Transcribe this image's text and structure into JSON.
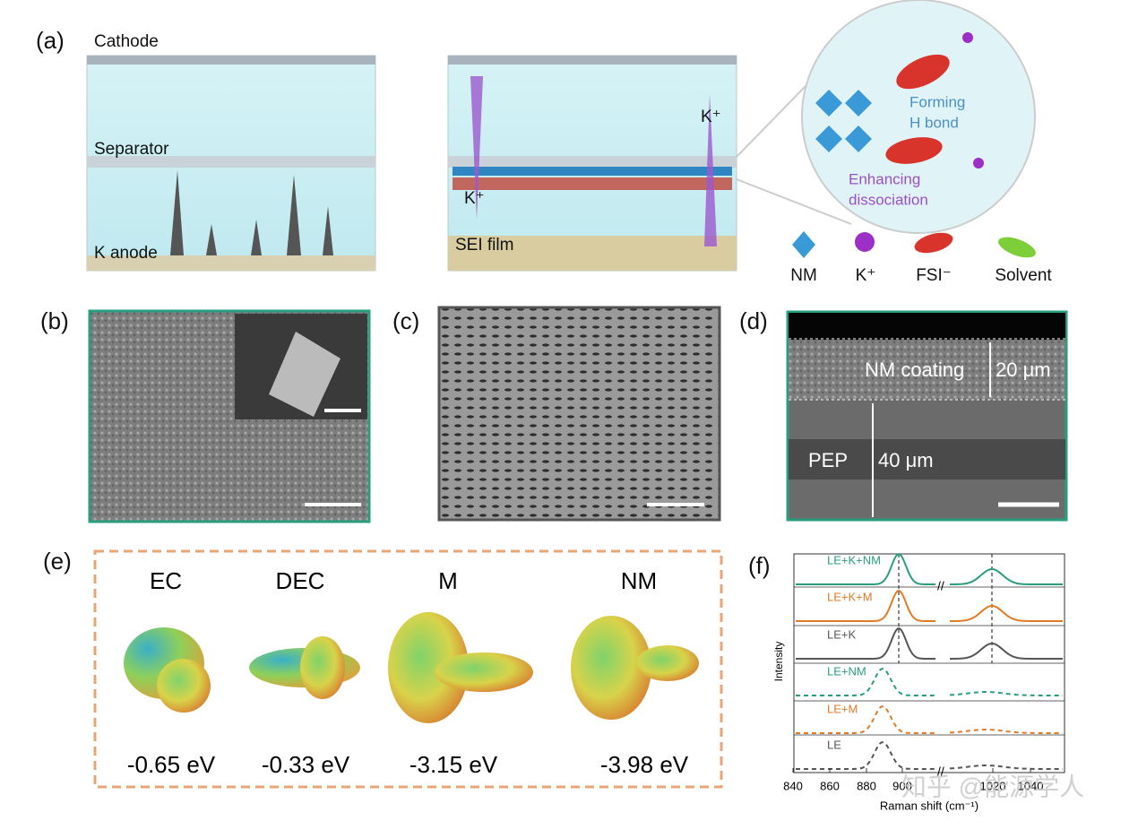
{
  "panel_a": {
    "label": "(a)",
    "cathode": "Cathode",
    "separator": "Separator",
    "anode": "K anode",
    "k_ion_right": "K⁺",
    "k_ion_left": "K⁺",
    "sei": "SEI film",
    "h_bond": [
      "Forming",
      "H bond"
    ],
    "dissociation": [
      "Enhancing",
      "dissociation"
    ],
    "legend": [
      "NM",
      "K⁺",
      "FSI⁻",
      "Solvent"
    ]
  },
  "panel_b": {
    "label": "(b)"
  },
  "panel_c": {
    "label": "(c)"
  },
  "panel_d": {
    "label": "(d)",
    "coating": "NM coating",
    "coating_thickness": "20 μm",
    "substrate": "PEP",
    "substrate_thickness": "40 μm"
  },
  "panel_e": {
    "label": "(e)",
    "molecules": [
      {
        "name": "EC",
        "energy": "-0.65 eV"
      },
      {
        "name": "DEC",
        "energy": "-0.33 eV"
      },
      {
        "name": "M",
        "energy": "-3.15 eV"
      },
      {
        "name": "NM",
        "energy": "-3.98 eV"
      }
    ]
  },
  "panel_f": {
    "label": "(f)",
    "y_label": "Intensity",
    "x_label": "Raman shift (cm⁻¹)",
    "traces": [
      "LE+K+NM",
      "LE+K+M",
      "LE+K",
      "LE+NM",
      "LE+M",
      "LE"
    ],
    "xticks": [
      840,
      860,
      880,
      900,
      1020,
      1040
    ]
  },
  "watermark": "知乎 @能源学人"
}
